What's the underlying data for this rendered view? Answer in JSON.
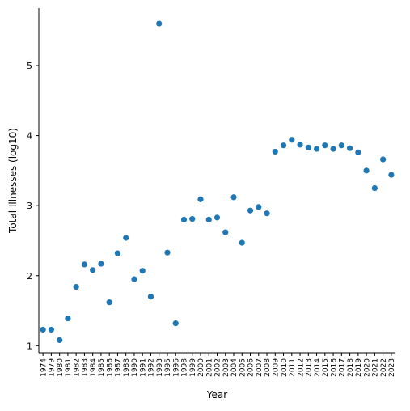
{
  "chart_data": {
    "type": "scatter",
    "xlabel": "Year",
    "ylabel": "Total Illnesses (log10)",
    "ylim": [
      0.9,
      5.82
    ],
    "yticks": [
      1,
      2,
      3,
      4,
      5
    ],
    "grid": false,
    "legend": "none",
    "point_color": "#1f77b4",
    "categories": [
      "1974",
      "1979",
      "1980",
      "1981",
      "1982",
      "1983",
      "1984",
      "1985",
      "1986",
      "1987",
      "1988",
      "1990",
      "1991",
      "1992",
      "1993",
      "1995",
      "1996",
      "1998",
      "1999",
      "2000",
      "2001",
      "2002",
      "2003",
      "2004",
      "2005",
      "2006",
      "2007",
      "2008",
      "2009",
      "2010",
      "2011",
      "2012",
      "2013",
      "2014",
      "2015",
      "2016",
      "2017",
      "2018",
      "2019",
      "2020",
      "2021",
      "2022",
      "2023"
    ],
    "values": [
      1.23,
      1.23,
      1.08,
      1.39,
      1.84,
      2.16,
      2.08,
      2.17,
      1.62,
      2.32,
      2.54,
      1.95,
      2.07,
      1.7,
      5.6,
      2.33,
      1.32,
      2.8,
      2.81,
      3.09,
      2.8,
      2.83,
      2.62,
      3.12,
      2.47,
      2.93,
      2.98,
      2.89,
      3.77,
      3.86,
      3.94,
      3.87,
      3.83,
      3.81,
      3.86,
      3.81,
      3.86,
      3.82,
      3.76,
      3.5,
      3.25,
      3.66,
      3.44
    ]
  }
}
